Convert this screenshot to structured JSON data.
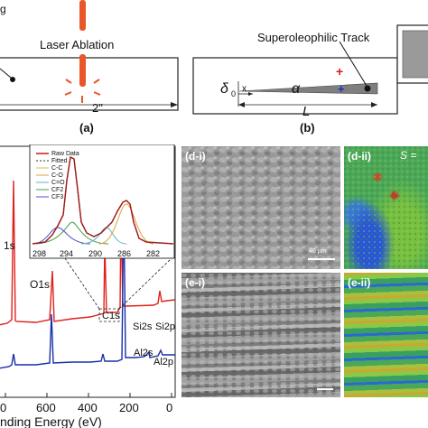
{
  "figure": {
    "top_left_cut": "g",
    "laser_label": "Laser Ablation",
    "length_label": "2\"",
    "label_a": "(a)",
    "label_b": "(b)",
    "track_label": "Superoleophilic Track",
    "delta_label": "δ",
    "delta_sub": "0",
    "x_label": "x",
    "alpha_label": "α",
    "L_label": "L",
    "plus_sign": "+",
    "colors": {
      "laser": "#e8572a",
      "plus_red": "#d02020",
      "plus_blue": "#2030c0"
    }
  },
  "xps": {
    "xlabel_visible": "nding Energy (eV)",
    "xticks": [
      "0",
      "600",
      "400",
      "200",
      "0"
    ],
    "peaks": {
      "F1s": "1s",
      "O1s": "O1s",
      "C1s": "C1s",
      "Si2s": "Si2s",
      "Si2p": "Si2p",
      "Al2s": "Al2s",
      "Al2p": "Al2p"
    },
    "series_colors": {
      "top": "#e0201a",
      "bottom": "#1a2fa8"
    },
    "inset": {
      "legend": [
        "Raw Data",
        "Fitted",
        "C-C",
        "C-O",
        "C=O",
        "CF2",
        "CF3"
      ],
      "legend_colors": [
        "#c81818",
        "#333333",
        "#d8c040",
        "#e0a030",
        "#60b0c8",
        "#40a040",
        "#5050c8"
      ],
      "xticks": [
        "298",
        "294",
        "290",
        "286",
        "282"
      ]
    }
  },
  "micrographs": {
    "d_i": "(d-i)",
    "d_ii": "(d-ii)",
    "e_i": "(e-i)",
    "e_ii": "(e-ii)",
    "scale_bar": "40 µm",
    "s_eq": "S ="
  }
}
